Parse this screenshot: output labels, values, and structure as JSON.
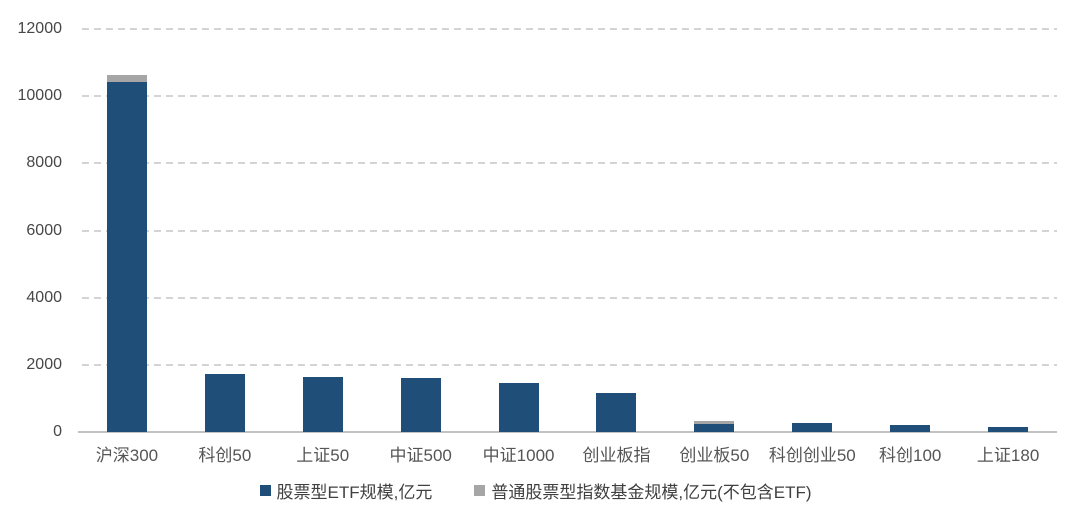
{
  "chart_data": {
    "type": "bar",
    "stacked": true,
    "title": "",
    "categories": [
      "沪深300",
      "科创50",
      "上证50",
      "中证500",
      "中证1000",
      "创业板指",
      "创业板50",
      "科创创业50",
      "科创100",
      "上证180"
    ],
    "series": [
      {
        "name": "股票型ETF规模,亿元",
        "color": "#1F4E79",
        "values": [
          10420,
          1730,
          1650,
          1620,
          1450,
          1170,
          240,
          260,
          220,
          160
        ]
      },
      {
        "name": "普通股票型指数基金规模,亿元(不包含ETF)",
        "color": "#A6A6A6",
        "values": [
          210,
          0,
          0,
          0,
          0,
          0,
          90,
          0,
          0,
          0
        ]
      }
    ],
    "xlabel": "",
    "ylabel": "",
    "ylim": [
      0,
      12000
    ],
    "yticks": [
      0,
      2000,
      4000,
      6000,
      8000,
      10000,
      12000
    ],
    "grid": "horizontal-dashed",
    "legend_position": "bottom",
    "colors": {
      "gridline": "#D4D4D4",
      "axis_line": "#C2C2C2",
      "tick_text": "#474747",
      "legend_text": "#404040",
      "background": "#FFFFFF"
    }
  }
}
